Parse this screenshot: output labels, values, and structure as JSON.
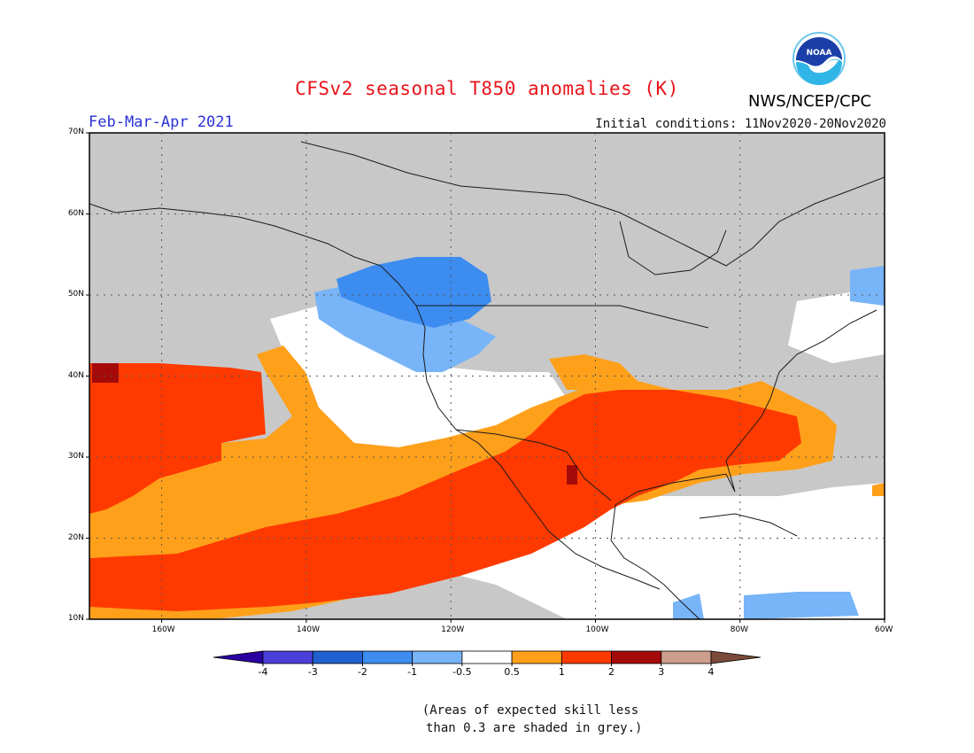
{
  "header": {
    "title": "CFSv2 seasonal T850 anomalies (K)",
    "agency": "NWS/NCEP/CPC",
    "logo_text": "NOAA",
    "period": "Feb-Mar-Apr 2021",
    "initial_conditions": "Initial conditions: 11Nov2020-20Nov2020"
  },
  "map": {
    "projection": "equirectangular",
    "lon_range": [
      -170,
      -60
    ],
    "lat_range": [
      10,
      70
    ],
    "lat_labels": [
      "70N",
      "60N",
      "50N",
      "40N",
      "30N",
      "20N",
      "10N"
    ],
    "lon_labels": [
      "160W",
      "140W",
      "120W",
      "100W",
      "80W",
      "60W"
    ],
    "gridlines": "dotted",
    "skill_mask_color": "#c8c8c8"
  },
  "colorbar": {
    "tick_labels": [
      "-4",
      "-3",
      "-2",
      "-1",
      "-0.5",
      "0.5",
      "1",
      "2",
      "3",
      "4"
    ],
    "bins": [
      {
        "color": "#2a00a0"
      },
      {
        "color": "#4a3fd8"
      },
      {
        "color": "#2060d0"
      },
      {
        "color": "#3d8cf0"
      },
      {
        "color": "#78b4f8"
      },
      {
        "color": "#ffffff"
      },
      {
        "color": "#ffa01a"
      },
      {
        "color": "#ff3a00"
      },
      {
        "color": "#a50a0a"
      },
      {
        "color": "#cc9e8c"
      },
      {
        "color": "#7a4a3a"
      }
    ]
  },
  "footnote": "(Areas of expected skill less\n than 0.3 are shaded in grey.)"
}
